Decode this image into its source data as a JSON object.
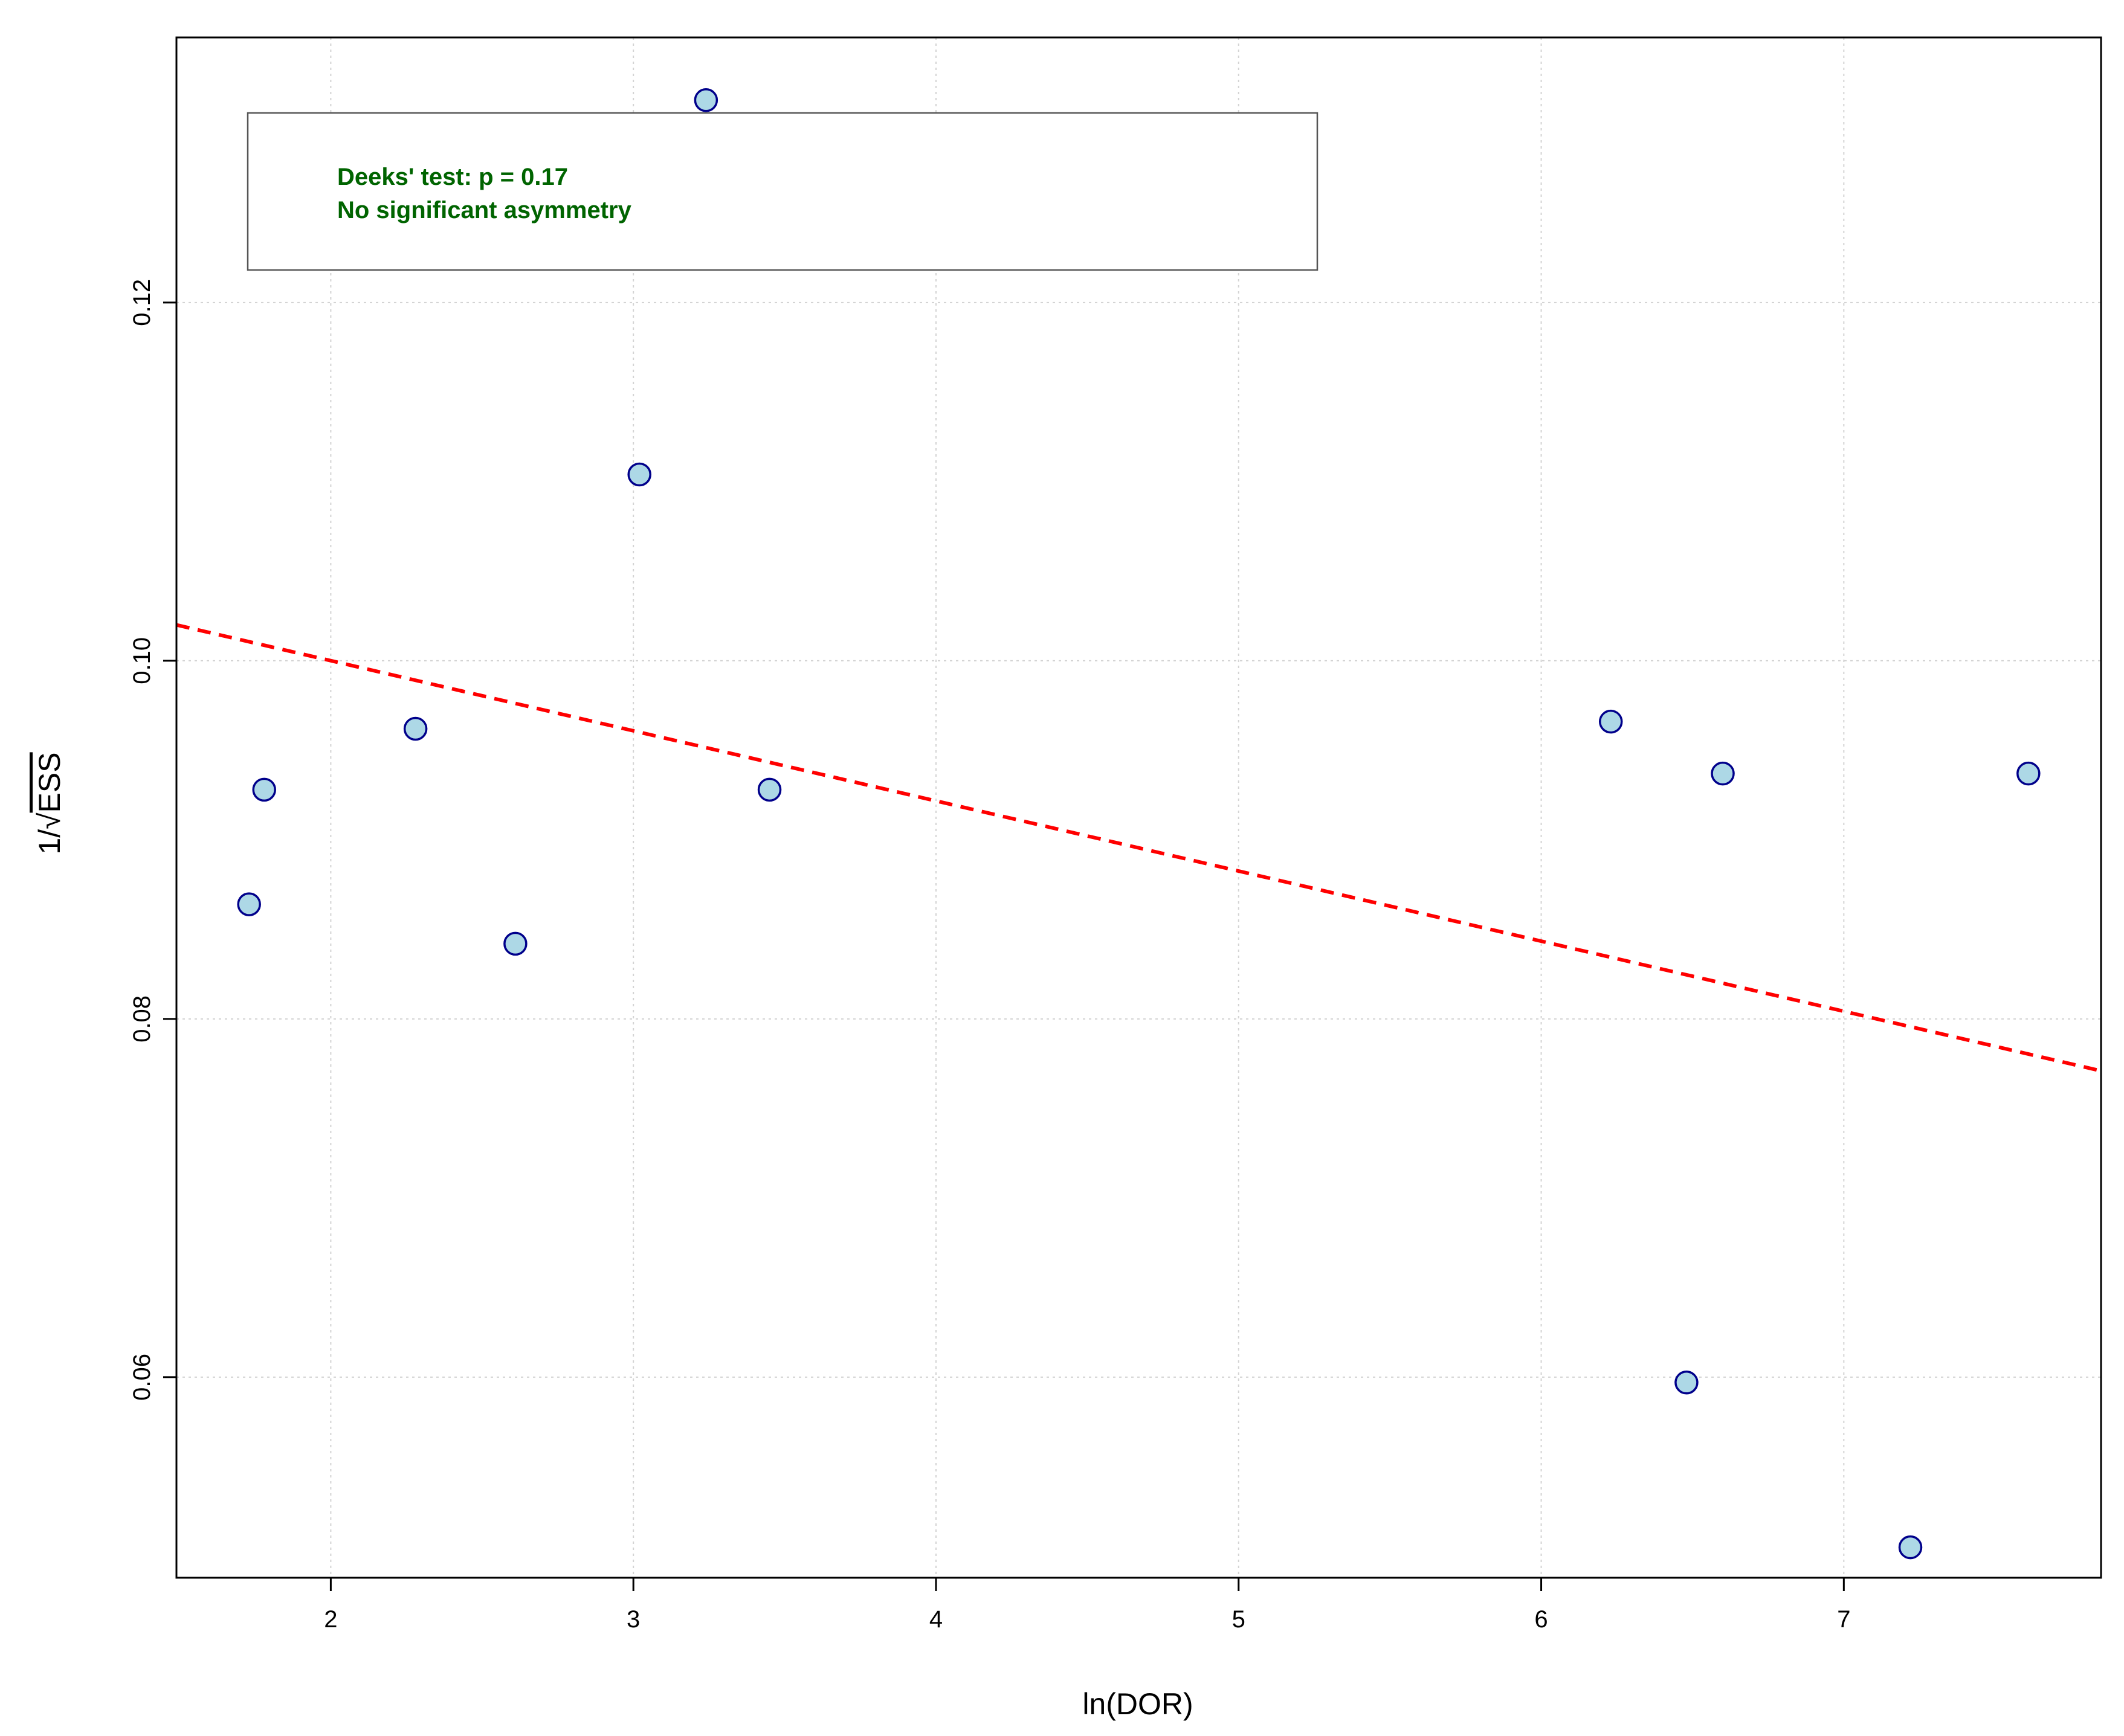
{
  "chart_data": {
    "type": "scatter",
    "title": "",
    "xlabel": "ln(DOR)",
    "ylabel_prefix": "1/",
    "ylabel_sqrt_term": "ESS",
    "xlim": [
      1.49,
      7.85
    ],
    "ylim": [
      0.0488,
      0.1348
    ],
    "x_ticks": [
      2,
      3,
      4,
      5,
      6,
      7
    ],
    "x_tick_labels": [
      "2",
      "3",
      "4",
      "5",
      "6",
      "7"
    ],
    "y_ticks": [
      0.06,
      0.08,
      0.1,
      0.12
    ],
    "y_tick_labels": [
      "0.06",
      "0.08",
      "0.10",
      "0.12"
    ],
    "grid": true,
    "points": [
      {
        "x": 1.73,
        "y": 0.0864
      },
      {
        "x": 1.78,
        "y": 0.0928
      },
      {
        "x": 2.28,
        "y": 0.0962
      },
      {
        "x": 2.61,
        "y": 0.0842
      },
      {
        "x": 3.02,
        "y": 0.1104
      },
      {
        "x": 3.24,
        "y": 0.1313
      },
      {
        "x": 3.45,
        "y": 0.0928
      },
      {
        "x": 6.23,
        "y": 0.0966
      },
      {
        "x": 6.48,
        "y": 0.0597
      },
      {
        "x": 6.6,
        "y": 0.0937
      },
      {
        "x": 7.22,
        "y": 0.0505
      },
      {
        "x": 7.61,
        "y": 0.0937
      }
    ],
    "regression_line": {
      "x": [
        1.49,
        7.85
      ],
      "y": [
        0.102,
        0.0771
      ],
      "style": "dashed",
      "color": "#ff0000"
    },
    "marker": {
      "fill": "#add8e6",
      "stroke": "#00008b"
    },
    "annotation": {
      "lines": [
        "Deeks' test: p = 0.17",
        "No significant asymmetry"
      ],
      "color": "#006400",
      "position": "top-left"
    }
  }
}
